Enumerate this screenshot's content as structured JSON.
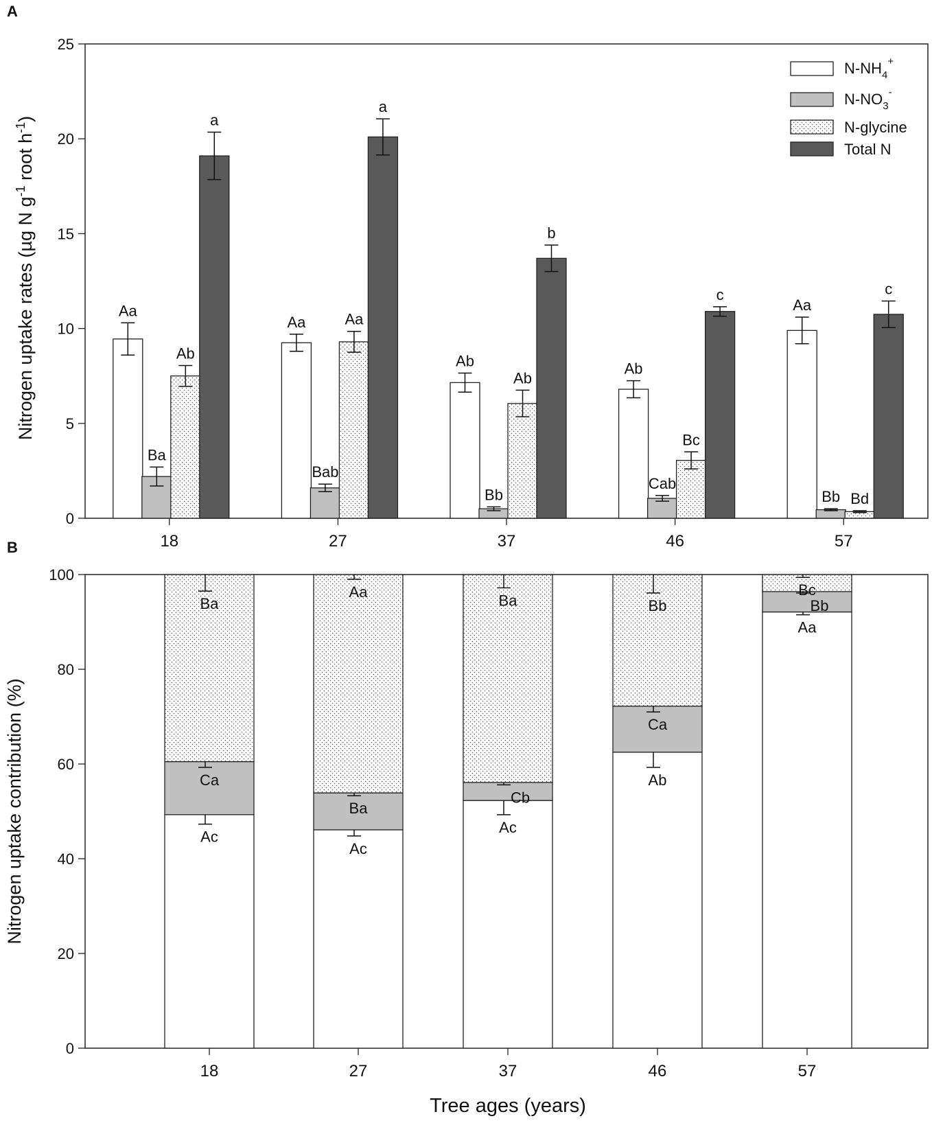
{
  "chart_data": [
    {
      "panel": "A",
      "type": "bar",
      "ylabel_main": "Nitrogen uptake rates (µg N g",
      "ylabel_sup1": "-1",
      "ylabel_mid": " root h",
      "ylabel_sup2": "-1",
      "ylabel_end": ")",
      "ylim": [
        0,
        25
      ],
      "yticks": [
        "0",
        "5",
        "10",
        "15",
        "20",
        "25"
      ],
      "categories": [
        "18",
        "27",
        "37",
        "46",
        "57"
      ],
      "legend": [
        {
          "base": "N-NH",
          "sub": "4",
          "sup": "+",
          "style": "white"
        },
        {
          "base": "N-NO",
          "sub": "3",
          "sup": "-",
          "style": "gray"
        },
        {
          "base": "N-glycine",
          "sub": "",
          "sup": "",
          "style": "dotted"
        },
        {
          "base": "Total N",
          "sub": "",
          "sup": "",
          "style": "dark"
        }
      ],
      "series": [
        {
          "name": "N-NH4+",
          "style": "white",
          "values": [
            9.45,
            9.25,
            7.15,
            6.8,
            9.9
          ],
          "errors": [
            0.85,
            0.45,
            0.5,
            0.45,
            0.7
          ],
          "labels": [
            "Aa",
            "Aa",
            "Ab",
            "Ab",
            "Aa"
          ]
        },
        {
          "name": "N-NO3-",
          "style": "gray",
          "values": [
            2.2,
            1.6,
            0.5,
            1.05,
            0.45
          ],
          "errors": [
            0.5,
            0.2,
            0.1,
            0.15,
            0.05
          ],
          "labels": [
            "Ba",
            "Bab",
            "Bb",
            "Cab",
            "Bb"
          ]
        },
        {
          "name": "N-glycine",
          "style": "dotted",
          "values": [
            7.5,
            9.3,
            6.05,
            3.05,
            0.35
          ],
          "errors": [
            0.55,
            0.55,
            0.7,
            0.45,
            0.05
          ],
          "labels": [
            "Ab",
            "Aa",
            "Ab",
            "Bc",
            "Bd"
          ]
        },
        {
          "name": "Total N",
          "style": "dark",
          "values": [
            19.1,
            20.1,
            13.7,
            10.9,
            10.75
          ],
          "errors": [
            1.25,
            0.95,
            0.7,
            0.25,
            0.7
          ],
          "labels": [
            "a",
            "a",
            "b",
            "c",
            "c"
          ]
        }
      ]
    },
    {
      "panel": "B",
      "type": "stacked-bar",
      "ylabel": "Nitrogen uptake contribution (%)",
      "xlabel": "Tree ages (years)",
      "ylim": [
        0,
        100
      ],
      "yticks": [
        "0",
        "20",
        "40",
        "60",
        "80",
        "100"
      ],
      "categories": [
        "18",
        "27",
        "37",
        "46",
        "57"
      ],
      "series": [
        {
          "name": "N-NH4+",
          "style": "white",
          "values": [
            49.3,
            46.1,
            52.3,
            62.5,
            92.1
          ],
          "errors": [
            2.0,
            1.3,
            3.0,
            3.2,
            0.6
          ],
          "labels": [
            "Ac",
            "Ac",
            "Ac",
            "Ab",
            "Aa"
          ]
        },
        {
          "name": "N-NO3-",
          "style": "gray",
          "values": [
            11.2,
            7.8,
            3.8,
            9.7,
            4.3
          ],
          "errors": [
            1.2,
            0.6,
            0.5,
            1.2,
            0.3
          ],
          "labels": [
            "Ca",
            "Ba",
            "Cb",
            "Ca",
            "Bb"
          ]
        },
        {
          "name": "N-glycine",
          "style": "dotted",
          "values": [
            39.5,
            46.1,
            43.9,
            27.8,
            3.6
          ],
          "errors": [
            3.5,
            1.0,
            2.8,
            3.9,
            0.6
          ],
          "labels": [
            "Ba",
            "Aa",
            "Ba",
            "Bb",
            "Bc"
          ]
        }
      ]
    }
  ],
  "panel_letters": [
    "A",
    "B"
  ],
  "colors": {
    "white": "#ffffff",
    "gray": "#c0c0c0",
    "dark": "#595959",
    "dot": "#555555",
    "axis": "#222222"
  }
}
